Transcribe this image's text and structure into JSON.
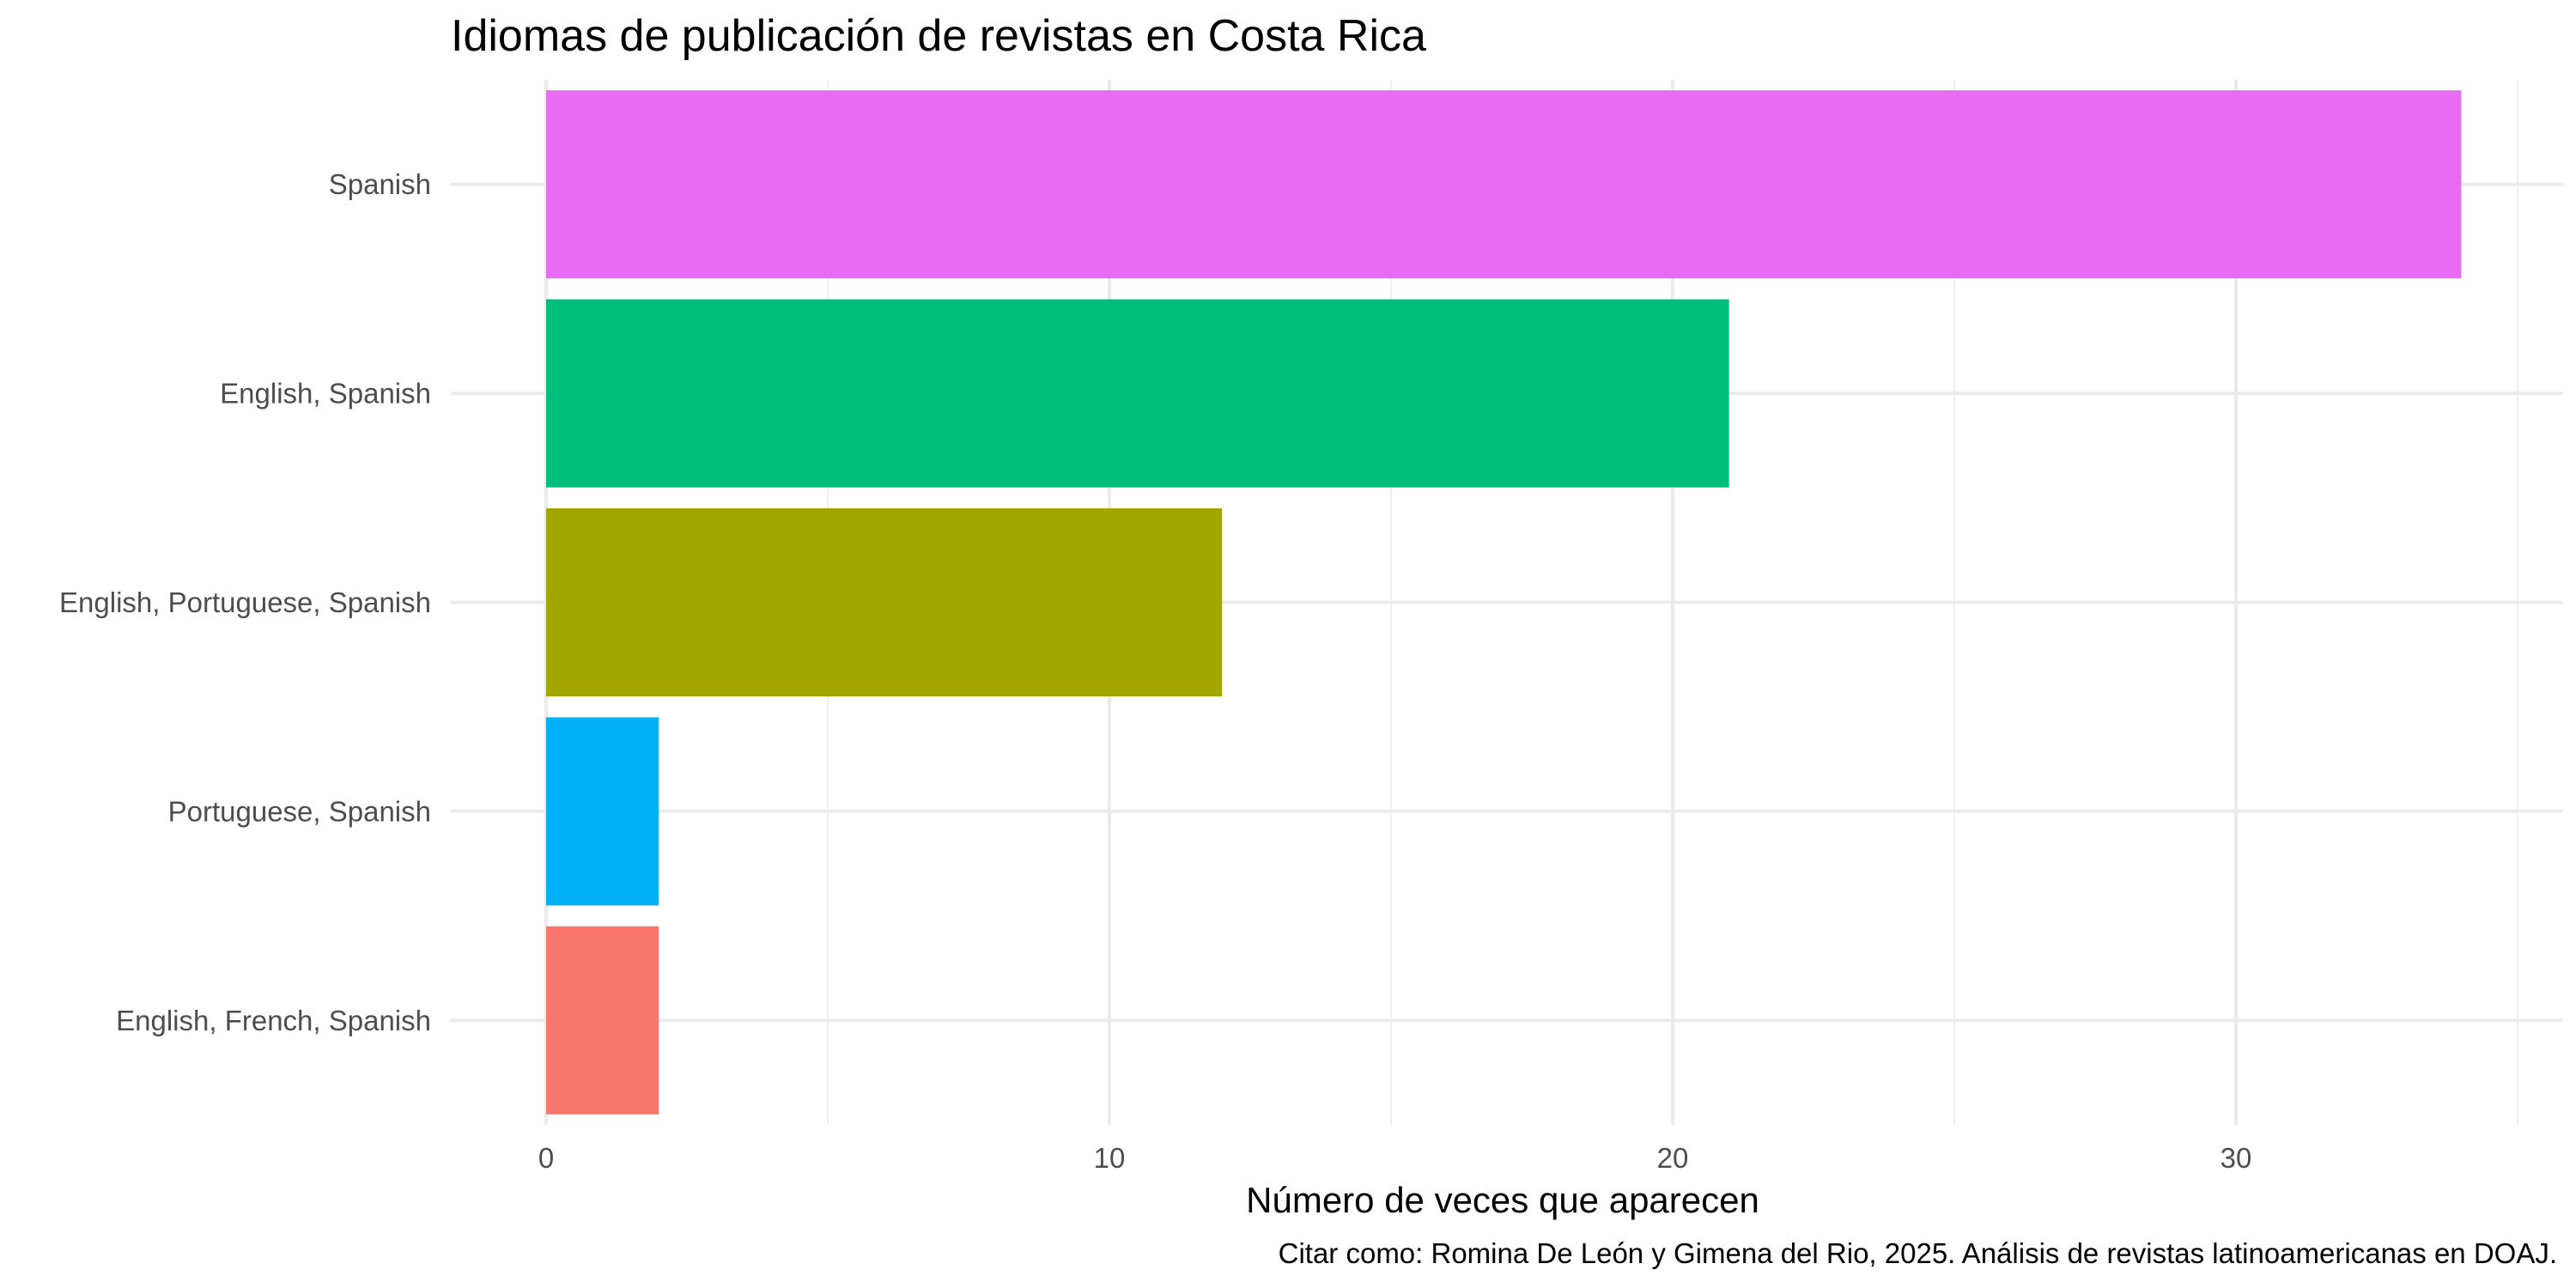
{
  "chart_data": {
    "type": "bar",
    "orientation": "horizontal",
    "title": "Idiomas de publicación de revistas en Costa Rica",
    "xlabel": "Número de veces que aparecen",
    "ylabel": "",
    "caption": "Citar como: Romina De León y Gimena del Rio, 2025. Análisis de revistas latinoamericanas en DOAJ.",
    "categories": [
      "Spanish",
      "English, Spanish",
      "English, Portuguese, Spanish",
      "Portuguese, Spanish",
      "English, French, Spanish"
    ],
    "values": [
      34,
      21,
      12,
      2,
      2
    ],
    "colors": [
      "#E76BF3",
      "#00BF7D",
      "#A3A500",
      "#00B0F6",
      "#F8766D"
    ],
    "xlim": [
      0,
      35.7
    ],
    "xticks": [
      0,
      10,
      20,
      30
    ],
    "xticks_minor": [
      5,
      15,
      25,
      35
    ],
    "grid": true,
    "legend": false
  }
}
